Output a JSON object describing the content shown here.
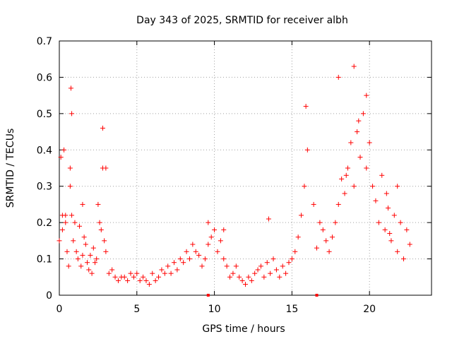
{
  "chart_data": {
    "type": "scatter",
    "title": "Day 343 of 2025, SRMTID for receiver albh",
    "xlabel": "GPS time / hours",
    "ylabel": "SRMTID / TECUs",
    "xlim": [
      0,
      24
    ],
    "ylim": [
      0,
      0.7
    ],
    "xticks": [
      0,
      5,
      10,
      15,
      20
    ],
    "yticks": [
      0,
      0.1,
      0.2,
      0.3,
      0.4,
      0.5,
      0.6,
      0.7
    ],
    "xtick_labels": [
      "0",
      "5",
      "10",
      "15",
      "20"
    ],
    "ytick_labels": [
      "0",
      "0.1",
      "0.2",
      "0.3",
      "0.4",
      "0.5",
      "0.6",
      "0.7"
    ],
    "grid": true,
    "marker": "+",
    "color": "#ff0000",
    "series": [
      {
        "name": "SRMTID",
        "x": [
          0.0,
          0.1,
          0.2,
          0.3,
          0.4,
          0.5,
          0.6,
          0.7,
          0.75,
          0.8,
          0.9,
          1.0,
          1.1,
          1.2,
          1.3,
          1.4,
          1.5,
          1.6,
          1.7,
          1.8,
          1.9,
          2.0,
          2.1,
          2.2,
          2.3,
          2.4,
          2.5,
          2.6,
          2.7,
          2.8,
          2.9,
          3.0,
          3.2,
          3.4,
          3.6,
          3.8,
          4.0,
          4.2,
          4.4,
          4.6,
          4.8,
          5.0,
          5.2,
          5.4,
          5.6,
          5.8,
          6.0,
          6.2,
          6.4,
          6.6,
          6.8,
          7.0,
          7.2,
          7.4,
          7.6,
          7.8,
          8.0,
          8.2,
          8.4,
          8.6,
          8.8,
          9.0,
          9.2,
          9.4,
          9.6,
          9.8,
          10.0,
          10.2,
          10.4,
          10.6,
          10.8,
          11.0,
          11.2,
          11.4,
          11.6,
          11.8,
          12.0,
          12.2,
          12.4,
          12.6,
          12.8,
          13.0,
          13.2,
          13.4,
          13.6,
          13.8,
          14.0,
          14.2,
          14.4,
          14.6,
          14.8,
          15.0,
          15.2,
          15.4,
          15.6,
          15.8,
          16.0,
          16.4,
          16.6,
          16.8,
          17.0,
          17.2,
          17.4,
          17.6,
          17.8,
          18.0,
          18.2,
          18.4,
          18.6,
          18.8,
          19.0,
          19.2,
          19.4,
          19.6,
          19.8,
          20.0,
          20.2,
          20.4,
          20.6,
          20.8,
          21.0,
          21.2,
          21.4,
          21.6,
          21.8,
          22.0,
          22.2,
          22.4,
          22.6,
          0.2,
          0.4,
          0.7,
          0.8,
          1.5,
          2.8,
          3.0,
          9.6,
          10.6,
          13.5,
          15.9,
          18.0,
          18.5,
          19.0,
          19.3,
          19.8,
          21.1,
          21.3,
          21.8
        ],
        "y": [
          0.15,
          0.38,
          0.18,
          0.4,
          0.22,
          0.12,
          0.08,
          0.3,
          0.57,
          0.22,
          0.15,
          0.2,
          0.12,
          0.1,
          0.19,
          0.08,
          0.11,
          0.16,
          0.14,
          0.09,
          0.07,
          0.11,
          0.06,
          0.13,
          0.09,
          0.1,
          0.25,
          0.2,
          0.18,
          0.35,
          0.15,
          0.12,
          0.06,
          0.07,
          0.05,
          0.04,
          0.05,
          0.05,
          0.04,
          0.06,
          0.05,
          0.06,
          0.04,
          0.05,
          0.04,
          0.03,
          0.06,
          0.04,
          0.05,
          0.07,
          0.06,
          0.08,
          0.06,
          0.09,
          0.07,
          0.1,
          0.09,
          0.12,
          0.1,
          0.14,
          0.12,
          0.11,
          0.08,
          0.1,
          0.14,
          0.16,
          0.18,
          0.12,
          0.15,
          0.1,
          0.08,
          0.05,
          0.06,
          0.08,
          0.05,
          0.04,
          0.03,
          0.05,
          0.04,
          0.06,
          0.07,
          0.08,
          0.05,
          0.09,
          0.06,
          0.1,
          0.07,
          0.05,
          0.08,
          0.06,
          0.09,
          0.1,
          0.12,
          0.16,
          0.22,
          0.3,
          0.4,
          0.25,
          0.13,
          0.2,
          0.18,
          0.15,
          0.12,
          0.16,
          0.2,
          0.25,
          0.32,
          0.28,
          0.35,
          0.42,
          0.3,
          0.45,
          0.38,
          0.5,
          0.35,
          0.42,
          0.3,
          0.26,
          0.2,
          0.33,
          0.18,
          0.24,
          0.15,
          0.22,
          0.12,
          0.2,
          0.1,
          0.18,
          0.14,
          0.22,
          0.2,
          0.35,
          0.5,
          0.25,
          0.46,
          0.35,
          0.2,
          0.18,
          0.21,
          0.52,
          0.6,
          0.33,
          0.63,
          0.48,
          0.55,
          0.28,
          0.17,
          0.3
        ],
        "markers_on_axis_x": [
          9.6,
          16.6
        ]
      }
    ]
  }
}
